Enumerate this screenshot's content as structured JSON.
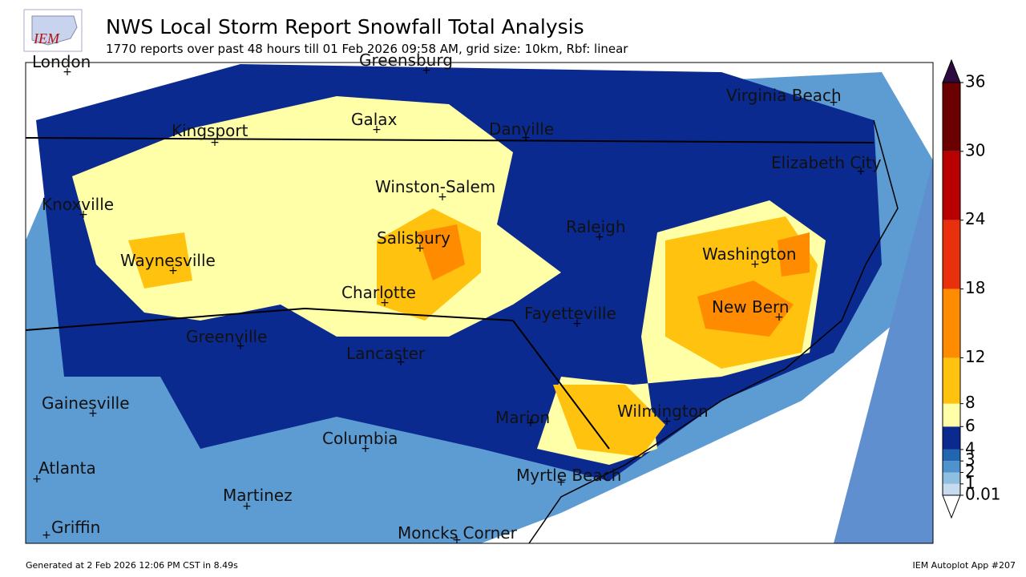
{
  "header": {
    "logo": "IEM",
    "title": "NWS Local Storm Report Snowfall Total Analysis",
    "subtitle": "1770 reports over past 48 hours till 01 Feb 2026 09:58 AM, grid size: 10km, Rbf: linear"
  },
  "map": {
    "cities": [
      "London",
      "Greensburg",
      "Virginia Beach",
      "Kingsport",
      "Galax",
      "Danville",
      "Elizabeth City",
      "Winston-Salem",
      "Knoxville",
      "Raleigh",
      "Salisbury",
      "Waynesville",
      "Washington",
      "Charlotte",
      "New Bern",
      "Fayetteville",
      "Greenville",
      "Lancaster",
      "Gainesville",
      "Marion",
      "Wilmington",
      "Columbia",
      "Atlanta",
      "Myrtle Beach",
      "Martinez",
      "Griffin",
      "Moncks Corner"
    ]
  },
  "colorbar": {
    "levels": [
      0.01,
      1,
      2,
      3,
      4,
      6,
      8,
      12,
      18,
      24,
      30,
      36
    ],
    "colors": [
      "#c6dbef",
      "#8fbfe0",
      "#4f93cc",
      "#2066b0",
      "#0b2a8f",
      "#ffffa8",
      "#ffc20e",
      "#ff8c00",
      "#e8300c",
      "#b80000",
      "#6b0000"
    ],
    "over_color": "#2d0b3e"
  },
  "footer": {
    "generated": "Generated at 2 Feb 2026 12:06 PM CST in 8.49s",
    "app": "IEM Autoplot App #207"
  }
}
